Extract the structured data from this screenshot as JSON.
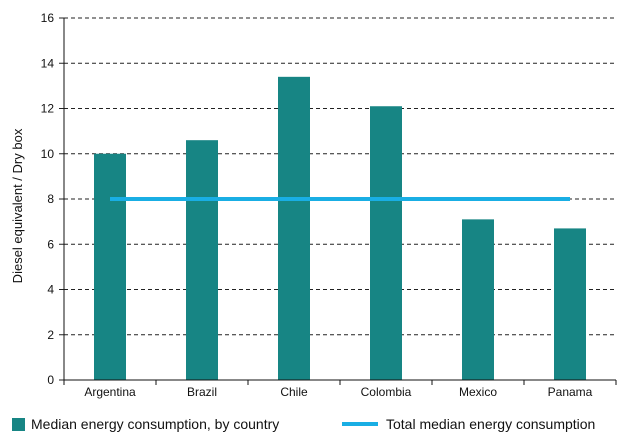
{
  "chart_data": {
    "type": "bar",
    "title": "",
    "xlabel": "",
    "ylabel": "Diesel equivalent / Dry box",
    "ylim": [
      0,
      16
    ],
    "yticks": [
      0,
      2,
      4,
      6,
      8,
      10,
      12,
      14,
      16
    ],
    "grid": "dashed horizontal",
    "legend_position": "bottom",
    "categories": [
      "Argentina",
      "Brazil",
      "Chile",
      "Colombia",
      "Mexico",
      "Panama"
    ],
    "series": [
      {
        "name": "Median energy consumption, by country",
        "type": "bar",
        "color": "#178584",
        "values": [
          10.0,
          10.6,
          13.4,
          12.1,
          7.1,
          6.7
        ]
      },
      {
        "name": "Total median energy consumption",
        "type": "line",
        "color": "#19aee4",
        "values": [
          8.0,
          8.0,
          8.0,
          8.0,
          8.0,
          8.0
        ]
      }
    ]
  }
}
